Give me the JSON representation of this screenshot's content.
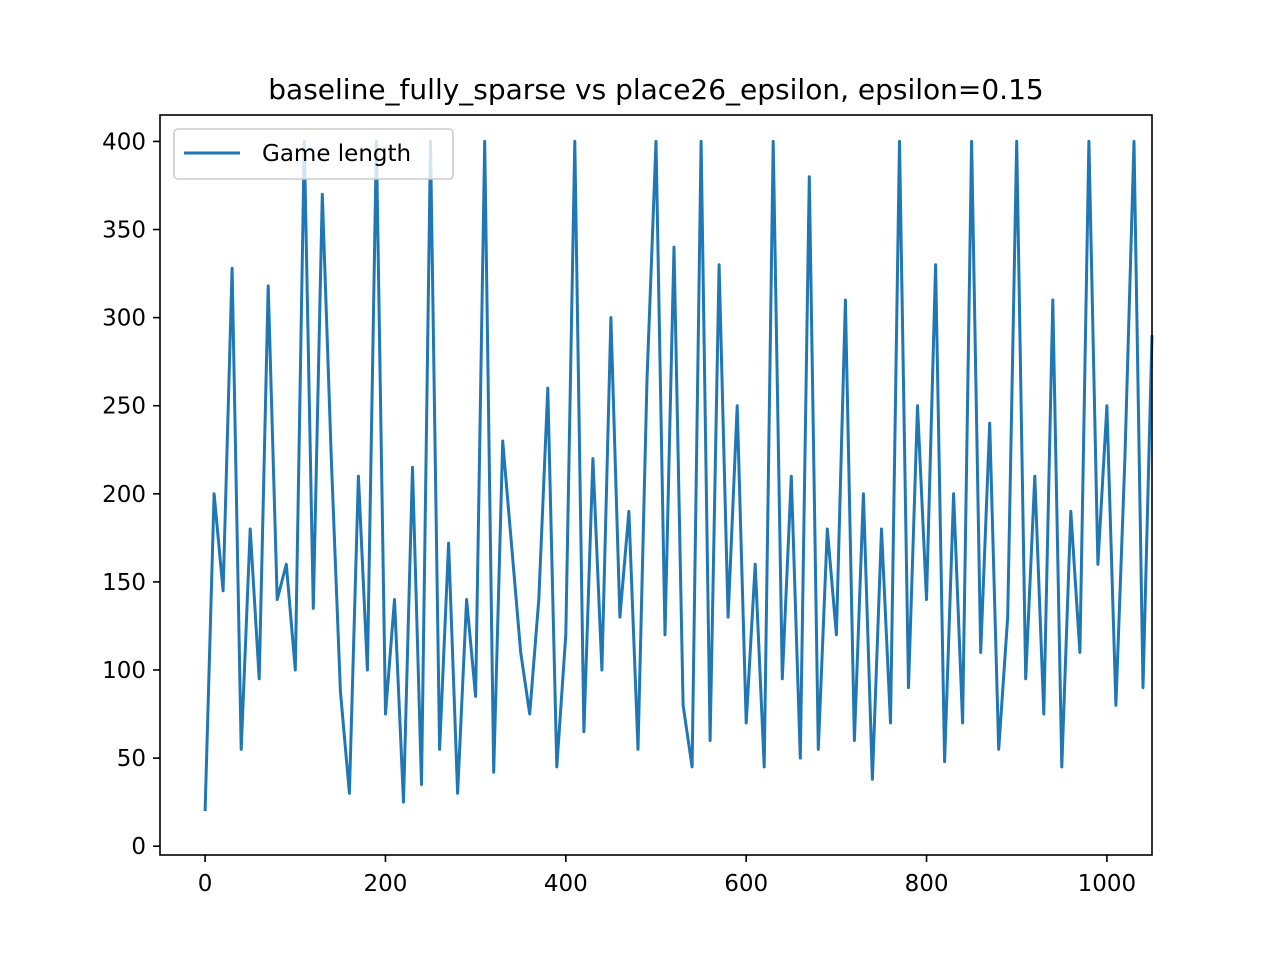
{
  "chart_data": {
    "type": "line",
    "title": "baseline_fully_sparse vs place26_epsilon, epsilon=0.15",
    "xlabel": "",
    "ylabel": "",
    "xlim": [
      -50,
      1050
    ],
    "ylim": [
      -5,
      415
    ],
    "xticks": [
      0,
      200,
      400,
      600,
      800,
      1000
    ],
    "xtick_labels": [
      "0",
      "200",
      "400",
      "600",
      "800",
      "1000"
    ],
    "yticks": [
      0,
      50,
      100,
      150,
      200,
      250,
      300,
      350,
      400
    ],
    "ytick_labels": [
      "0",
      "50",
      "100",
      "150",
      "200",
      "250",
      "300",
      "350",
      "400"
    ],
    "grid": false,
    "legend_position": "upper left",
    "series": [
      {
        "name": "Game length",
        "color": "#1f77b4",
        "x_start": 0,
        "x_step": 10,
        "values": [
          20,
          200,
          145,
          328,
          55,
          180,
          95,
          318,
          140,
          160,
          100,
          400,
          135,
          370,
          220,
          88,
          30,
          210,
          100,
          400,
          75,
          140,
          25,
          215,
          35,
          400,
          55,
          172,
          30,
          140,
          85,
          400,
          42,
          230,
          170,
          110,
          75,
          140,
          260,
          45,
          120,
          400,
          65,
          220,
          100,
          300,
          130,
          190,
          55,
          265,
          400,
          120,
          340,
          80,
          45,
          400,
          60,
          330,
          130,
          250,
          70,
          160,
          45,
          400,
          95,
          210,
          50,
          380,
          55,
          180,
          120,
          310,
          60,
          200,
          38,
          180,
          70,
          400,
          90,
          250,
          140,
          330,
          48,
          200,
          70,
          400,
          110,
          240,
          55,
          130,
          400,
          95,
          210,
          75,
          310,
          45,
          190,
          110,
          400,
          160,
          250,
          80,
          220,
          400,
          90,
          290
        ]
      }
    ]
  }
}
